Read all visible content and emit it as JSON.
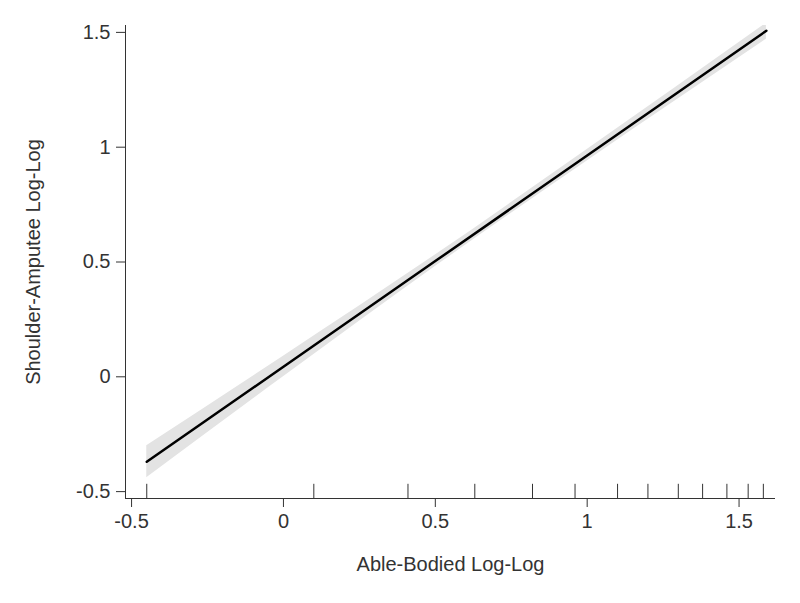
{
  "chart_data": {
    "type": "line",
    "x_label": "Able-Bodied Log-Log",
    "y_label": "Shoulder-Amputee Log-Log",
    "x": [
      -0.45,
      0,
      0.5,
      1,
      1.59
    ],
    "series": [
      {
        "color": "#000000",
        "values": [
          -0.37,
          0.044,
          0.504,
          0.964,
          1.507
        ],
        "lower": [
          -0.44,
          0.0,
          0.48,
          0.94,
          1.47
        ],
        "upper": [
          -0.3,
          0.09,
          0.53,
          0.99,
          1.54
        ]
      }
    ],
    "rug": [
      -0.45,
      0.1,
      0.41,
      0.63,
      0.82,
      0.96,
      1.1,
      1.2,
      1.3,
      1.38,
      1.46,
      1.53,
      1.58
    ],
    "xlim": [
      -0.52,
      1.62
    ],
    "ylim": [
      -0.53,
      1.53
    ],
    "xticks": [
      -0.5,
      0,
      0.5,
      1,
      1.5
    ],
    "yticks": [
      -0.5,
      0,
      0.5,
      1,
      1.5
    ],
    "grid": false
  }
}
